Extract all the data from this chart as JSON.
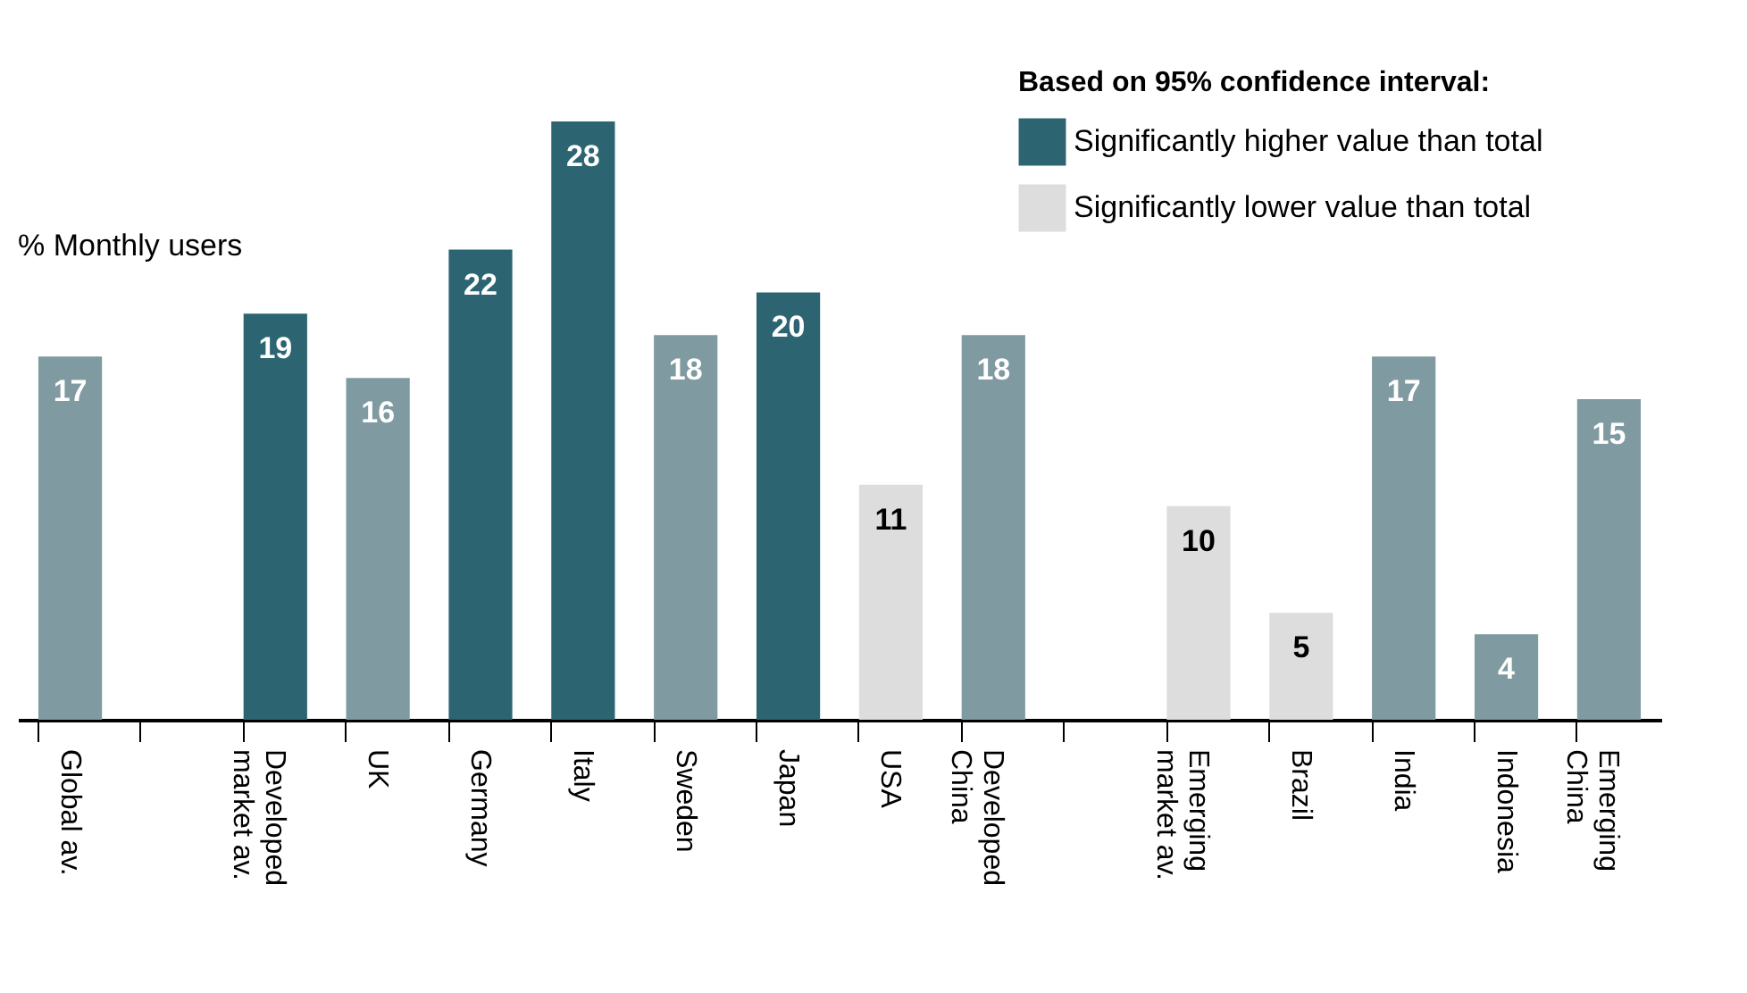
{
  "chart_data": {
    "type": "bar",
    "ylabel": "% Monthly users",
    "legend_title": "Based on 95% confidence interval:",
    "legend": "top right",
    "data_labels": true,
    "grid": false,
    "categories": [
      "Global av.",
      null,
      "Developed\nmarket av.",
      "UK",
      "Germany",
      "Italy",
      "Sweden",
      "Japan",
      "USA",
      "Developed\nChina",
      null,
      "Emerging\nmarket av.",
      "Brazil",
      "India",
      "Indonesia",
      "Emerging\nChina"
    ],
    "series": [
      {
        "name": "Significantly higher value than total",
        "color": "#2c6472",
        "values": [
          null,
          null,
          19,
          null,
          22,
          28,
          null,
          20,
          null,
          null,
          null,
          null,
          null,
          null,
          null,
          null
        ]
      },
      {
        "name": "Significantly lower value than total",
        "color": "#dcdddc",
        "values": [
          null,
          null,
          null,
          null,
          null,
          null,
          null,
          null,
          11,
          null,
          null,
          10,
          5,
          null,
          null,
          null
        ]
      },
      {
        "color": "#7f9aa0",
        "values": [
          17,
          null,
          null,
          16,
          null,
          null,
          18,
          null,
          null,
          18,
          null,
          null,
          null,
          17,
          4,
          15
        ]
      }
    ]
  }
}
